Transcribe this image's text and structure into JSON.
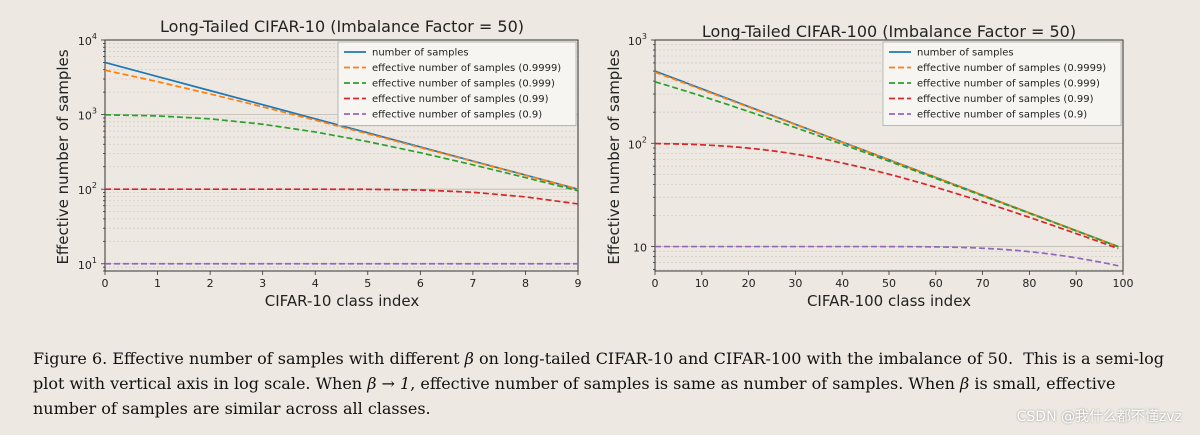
{
  "chart_data": [
    {
      "type": "line",
      "scale": "log",
      "title": "Long-Tailed CIFAR-10 (Imbalance Factor = 50)",
      "xlabel": "CIFAR-10 class index",
      "ylabel": "Effective number of samples",
      "xlim": [
        0,
        9
      ],
      "ylim": [
        8,
        10000
      ],
      "xticks": [
        "0",
        "1",
        "2",
        "3",
        "4",
        "5",
        "6",
        "7",
        "8",
        "9"
      ],
      "yticks": [
        {
          "base": "10",
          "exp": "1",
          "value": 10
        },
        {
          "base": "10",
          "exp": "2",
          "value": 100
        },
        {
          "base": "10",
          "exp": "3",
          "value": 1000
        },
        {
          "base": "10",
          "exp": "4",
          "value": 10000
        }
      ],
      "num_classes": 10,
      "n_max": 5000,
      "imbalance_factor": 50,
      "legend_position": "top-right",
      "series": [
        {
          "name": "number of samples",
          "beta": null,
          "color": "#1f77b4",
          "dash": "solid"
        },
        {
          "name": "effective number of samples (0.9999)",
          "beta": 0.9999,
          "color": "#ff7f0e",
          "dash": "dashed"
        },
        {
          "name": "effective number of samples (0.999)",
          "beta": 0.999,
          "color": "#2ca02c",
          "dash": "dashed"
        },
        {
          "name": "effective number of samples (0.99)",
          "beta": 0.99,
          "color": "#d62728",
          "dash": "dashed"
        },
        {
          "name": "effective number of samples (0.9)",
          "beta": 0.9,
          "color": "#9467bd",
          "dash": "dashed"
        }
      ]
    },
    {
      "type": "line",
      "scale": "log",
      "title": "Long-Tailed CIFAR-100 (Imbalance Factor = 50)",
      "xlabel": "CIFAR-100 class index",
      "ylabel": "Effective number of samples",
      "xlim": [
        0,
        100
      ],
      "ylim": [
        5.8,
        1000
      ],
      "xticks": [
        "0",
        "10",
        "20",
        "30",
        "40",
        "50",
        "60",
        "70",
        "80",
        "90",
        "100"
      ],
      "yticks": [
        {
          "base": "10",
          "exp": "",
          "value": 10
        },
        {
          "base": "10",
          "exp": "2",
          "value": 100
        },
        {
          "base": "10",
          "exp": "3",
          "value": 1000
        }
      ],
      "num_classes": 100,
      "n_max": 500,
      "imbalance_factor": 50,
      "legend_position": "top-right",
      "series": [
        {
          "name": "number of samples",
          "beta": null,
          "color": "#1f77b4",
          "dash": "solid"
        },
        {
          "name": "effective number of samples (0.9999)",
          "beta": 0.9999,
          "color": "#ff7f0e",
          "dash": "dashed"
        },
        {
          "name": "effective number of samples (0.999)",
          "beta": 0.999,
          "color": "#2ca02c",
          "dash": "dashed"
        },
        {
          "name": "effective number of samples (0.99)",
          "beta": 0.99,
          "color": "#d62728",
          "dash": "dashed"
        },
        {
          "name": "effective number of samples (0.9)",
          "beta": 0.9,
          "color": "#9467bd",
          "dash": "dashed"
        }
      ]
    }
  ],
  "caption": {
    "figure_label": "Figure 6.",
    "text1": " Effective number of samples with different ",
    "beta1": "β",
    "text2": " on long-tailed CIFAR-10 and CIFAR-100 with the imbalance of 50.  This is a semi-log plot with vertical axis in log scale. When ",
    "beta2": "β → 1",
    "text3": ", effective number of samples is same as number of samples. When ",
    "beta3": "β",
    "text4": " is small, effective number of samples are similar across all classes."
  },
  "watermark": "CSDN @我什么都不懂zvz"
}
